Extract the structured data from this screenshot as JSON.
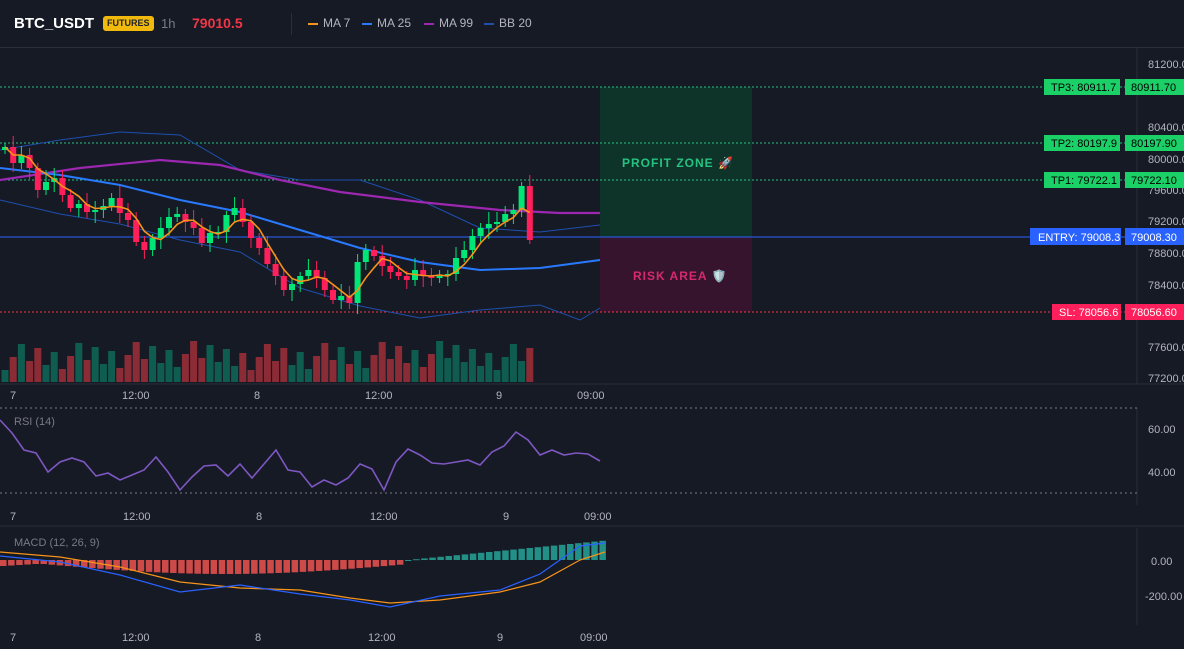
{
  "header": {
    "symbol": "BTC_USDT",
    "badge": "FUTURES",
    "timeframe": "1h",
    "price": "79010.5"
  },
  "legend": [
    {
      "label": "MA 7",
      "color": "#f7931a"
    },
    {
      "label": "MA 25",
      "color": "#2979ff"
    },
    {
      "label": "MA 99",
      "color": "#9c27b0"
    },
    {
      "label": "BB 20",
      "color": "#1e4fae"
    }
  ],
  "colors": {
    "up": "#089981",
    "upBright": "#00e676",
    "down": "#f23645",
    "downBright": "#ff1f5a"
  },
  "main": {
    "y_ticks": [
      "81200.00",
      "80400.00",
      "80000.00",
      "79600.00",
      "79200.00",
      "78800.00",
      "78400.00",
      "77600.00",
      "77200.00"
    ],
    "levels": [
      {
        "tag": "TP3: 80911.7",
        "value": "80911.70",
        "kind": "tp"
      },
      {
        "tag": "TP2: 80197.9",
        "value": "80197.90",
        "kind": "tp"
      },
      {
        "tag": "TP1: 79722.1",
        "value": "79722.10",
        "kind": "tp"
      },
      {
        "tag": "ENTRY: 79008.3",
        "value": "79008.30",
        "kind": "entry"
      },
      {
        "tag": "SL: 78056.6",
        "value": "78056.60",
        "kind": "sl"
      }
    ],
    "profit_label": "PROFIT ZONE 🚀",
    "risk_label": "RISK AREA 🛡️",
    "x_ticks": [
      "7",
      "12:00",
      "8",
      "12:00",
      "9",
      "09:00"
    ]
  },
  "rsi": {
    "label": "RSI (14)",
    "y_ticks": [
      "60.00",
      "40.00"
    ],
    "x_ticks": [
      "7",
      "12:00",
      "8",
      "12:00",
      "9",
      "09:00"
    ]
  },
  "macd": {
    "label": "MACD (12, 26, 9)",
    "y_ticks": [
      "0.00",
      "-200.00"
    ],
    "x_ticks": [
      "7",
      "12:00",
      "8",
      "12:00",
      "9",
      "09:00"
    ]
  }
}
